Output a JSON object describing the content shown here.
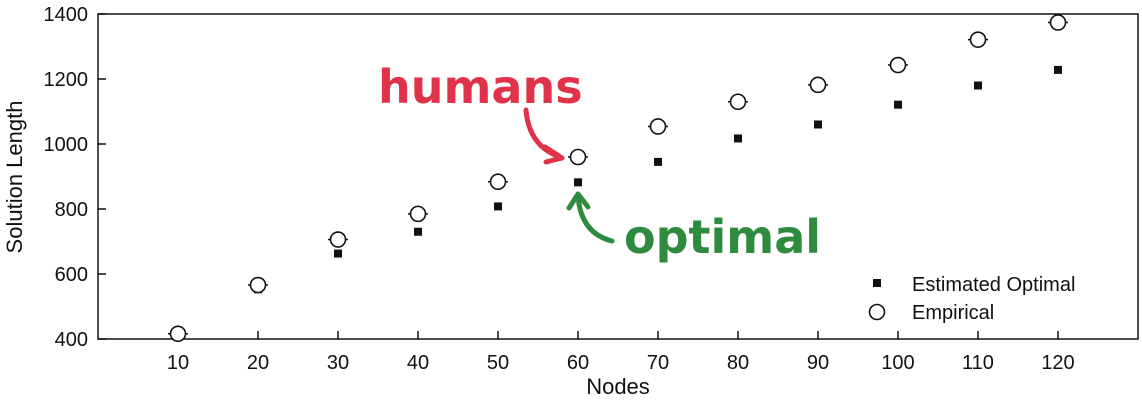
{
  "chart_data": {
    "type": "scatter",
    "xlabel": "Nodes",
    "ylabel": "Solution Length",
    "xlim": [
      0,
      130
    ],
    "ylim": [
      400,
      1400
    ],
    "x_ticks": [
      10,
      20,
      30,
      40,
      50,
      60,
      70,
      80,
      90,
      100,
      110,
      120
    ],
    "y_ticks": [
      400,
      600,
      800,
      1000,
      1200,
      1400
    ],
    "grid": false,
    "legend_position": "bottom-right",
    "series": [
      {
        "name": "Estimated Optimal",
        "marker": "filled-square",
        "color": "#111111",
        "x": [
          10,
          20,
          30,
          40,
          50,
          60,
          70,
          80,
          90,
          100,
          110,
          120
        ],
        "y": [
          414,
          553,
          663,
          730,
          808,
          882,
          945,
          1017,
          1060,
          1121,
          1180,
          1228
        ]
      },
      {
        "name": "Empirical",
        "marker": "open-circle",
        "color": "#111111",
        "x": [
          10,
          20,
          30,
          40,
          50,
          60,
          70,
          80,
          90,
          100,
          110,
          120
        ],
        "y": [
          416,
          566,
          706,
          785,
          884,
          960,
          1054,
          1130,
          1182,
          1243,
          1321,
          1374
        ]
      }
    ],
    "annotations": [
      {
        "text": "humans",
        "color": "#e0334a",
        "points_to": {
          "series": "Empirical",
          "x": 60,
          "y": 960
        }
      },
      {
        "text": "optimal",
        "color": "#2e8b3e",
        "points_to": {
          "series": "Estimated Optimal",
          "x": 60,
          "y": 882
        }
      }
    ]
  }
}
